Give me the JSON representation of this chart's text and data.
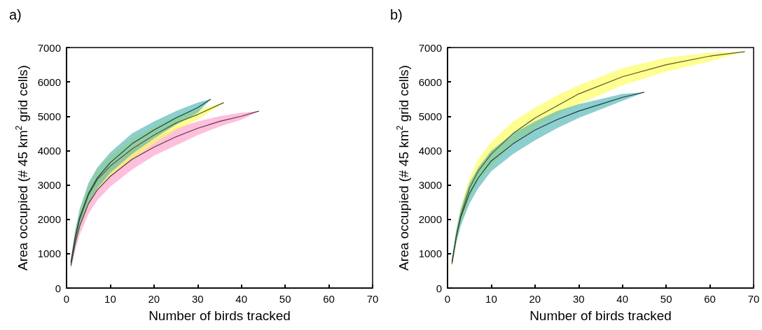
{
  "chart_data": [
    {
      "type": "line",
      "title": "a)",
      "xlabel": "Number of birds tracked",
      "ylabel": "Area occupied (# 45 km$^{2}$ grid cells)",
      "xlim": [
        0,
        70
      ],
      "xticks": [
        0,
        10,
        20,
        30,
        40,
        50,
        60,
        70
      ],
      "ylim": [
        0,
        7000
      ],
      "yticks": [
        0,
        1000,
        2000,
        3000,
        4000,
        5000,
        6000,
        7000
      ],
      "marker": "none",
      "series": [
        {
          "color": "#593747",
          "x": [
            1,
            2,
            3,
            5,
            7,
            10,
            15,
            20,
            25,
            30,
            35,
            40,
            44
          ],
          "values": [
            650,
            1300,
            1800,
            2450,
            2850,
            3250,
            3750,
            4100,
            4400,
            4650,
            4850,
            5000,
            5150
          ],
          "lower": [
            550,
            1100,
            1550,
            2150,
            2550,
            2950,
            3450,
            3850,
            4150,
            4450,
            4700,
            4900,
            5150
          ],
          "upper": [
            750,
            1500,
            2050,
            2750,
            3150,
            3550,
            4050,
            4350,
            4650,
            4850,
            5000,
            5100,
            5150
          ]
        },
        {
          "color": "#59591e",
          "x": [
            1,
            2,
            3,
            5,
            7,
            10,
            15,
            20,
            25,
            30,
            36
          ],
          "values": [
            700,
            1450,
            2000,
            2700,
            3150,
            3550,
            4050,
            4450,
            4800,
            5050,
            5400
          ],
          "lower": [
            600,
            1250,
            1750,
            2400,
            2850,
            3250,
            3750,
            4200,
            4600,
            4900,
            5400
          ],
          "upper": [
            800,
            1650,
            2250,
            3000,
            3450,
            3850,
            4350,
            4700,
            5000,
            5200,
            5400
          ]
        },
        {
          "color": "#1c3f3f",
          "x": [
            1,
            2,
            3,
            5,
            7,
            10,
            15,
            20,
            25,
            30,
            33
          ],
          "values": [
            750,
            1500,
            2050,
            2750,
            3200,
            3650,
            4200,
            4600,
            4950,
            5250,
            5500
          ],
          "lower": [
            650,
            1300,
            1800,
            2450,
            2900,
            3350,
            3900,
            4350,
            4750,
            5100,
            5500
          ],
          "upper": [
            850,
            1700,
            2300,
            3050,
            3500,
            3950,
            4500,
            4850,
            5150,
            5400,
            5500
          ]
        }
      ]
    },
    {
      "type": "line",
      "title": "b)",
      "xlabel": "Number of birds tracked",
      "ylabel": "Area occupied (# 45 km$^{2}$ grid cells)",
      "xlim": [
        0,
        70
      ],
      "xticks": [
        0,
        10,
        20,
        30,
        40,
        50,
        60,
        70
      ],
      "ylim": [
        0,
        7000
      ],
      "yticks": [
        0,
        1000,
        2000,
        3000,
        4000,
        5000,
        6000,
        7000
      ],
      "marker": "none",
      "series": [
        {
          "color": "#59591e",
          "x": [
            1,
            2,
            3,
            5,
            7,
            10,
            15,
            20,
            25,
            30,
            40,
            50,
            60,
            68
          ],
          "values": [
            700,
            1500,
            2100,
            2900,
            3400,
            3900,
            4500,
            4950,
            5300,
            5650,
            6150,
            6500,
            6750,
            6880
          ],
          "lower": [
            600,
            1300,
            1850,
            2600,
            3100,
            3550,
            4200,
            4650,
            5050,
            5350,
            5900,
            6300,
            6600,
            6880
          ],
          "upper": [
            800,
            1700,
            2350,
            3200,
            3750,
            4250,
            4850,
            5250,
            5600,
            5900,
            6400,
            6700,
            6850,
            6880
          ]
        },
        {
          "color": "#1c3f3f",
          "x": [
            1,
            2,
            3,
            5,
            7,
            10,
            15,
            20,
            25,
            30,
            35,
            40,
            45
          ],
          "values": [
            750,
            1500,
            2050,
            2750,
            3200,
            3700,
            4200,
            4600,
            4900,
            5150,
            5350,
            5550,
            5700
          ],
          "lower": [
            650,
            1300,
            1800,
            2450,
            2900,
            3400,
            3900,
            4300,
            4650,
            4950,
            5200,
            5450,
            5700
          ],
          "upper": [
            850,
            1700,
            2300,
            3050,
            3500,
            4000,
            4500,
            4850,
            5150,
            5350,
            5500,
            5650,
            5700
          ]
        }
      ]
    }
  ]
}
